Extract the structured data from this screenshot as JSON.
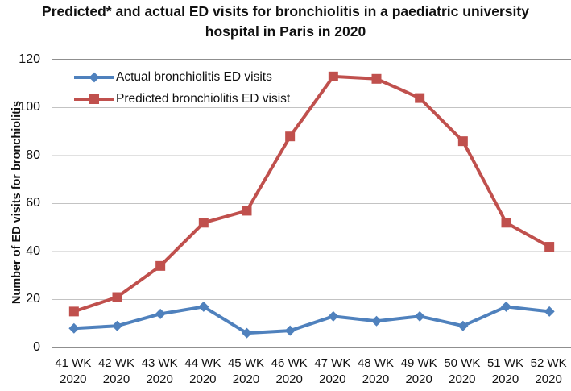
{
  "title": {
    "line1": "Predicted* and actual ED visits for bronchiolitis in a paediatric university",
    "line2": "hospital in Paris in 2020"
  },
  "chart_data": {
    "type": "line",
    "title": "Predicted* and actual ED visits for bronchiolitis in a paediatric university hospital in Paris in 2020",
    "ylabel": "Number of ED visits for bronchiolitis",
    "xlabel": "",
    "ylim": [
      0,
      120
    ],
    "yticks": [
      0,
      20,
      40,
      60,
      80,
      100,
      120
    ],
    "grid": true,
    "legend_position": "top-left-inside",
    "categories": [
      "41 WK",
      "42 WK",
      "43 WK",
      "44 WK",
      "45 WK",
      "46 WK",
      "47 WK",
      "48 WK",
      "49 WK",
      "50 WK",
      "51 WK",
      "52 WK"
    ],
    "category_year": "2020",
    "series": [
      {
        "name": "Actual bronchiolitis ED visits",
        "color": "#4F81BD",
        "marker": "diamond",
        "values": [
          8,
          9,
          14,
          17,
          6,
          7,
          13,
          11,
          13,
          9,
          17,
          15
        ]
      },
      {
        "name": "Predicted bronchiolitis ED visist",
        "color": "#C0504D",
        "marker": "square",
        "values": [
          15,
          21,
          34,
          52,
          57,
          88,
          113,
          112,
          104,
          86,
          52,
          42
        ]
      }
    ]
  },
  "colors": {
    "background": "#FFFFFF",
    "text": "#111111",
    "gridline": "#C3C3C3",
    "plot_border": "#8F8F8F",
    "actual_series": "#4F81BD",
    "predicted_series": "#C0504D"
  }
}
